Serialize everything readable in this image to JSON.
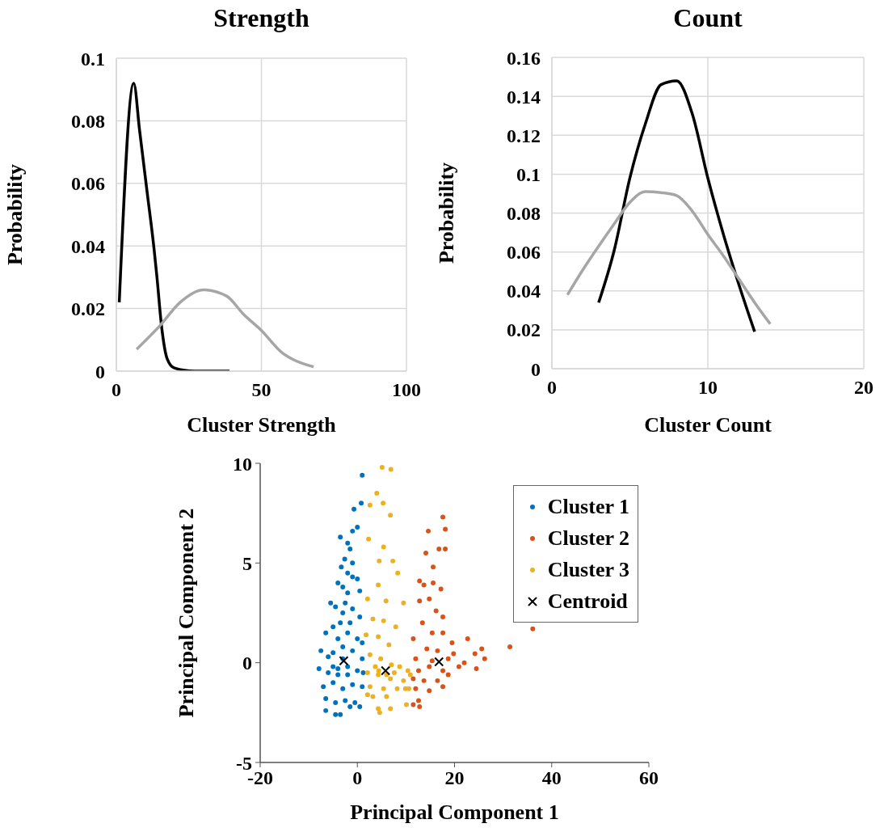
{
  "chart_data": [
    {
      "type": "line",
      "title": "Strength",
      "xlabel": "Cluster Strength",
      "ylabel": "Probability",
      "xlim": [
        0,
        100
      ],
      "xticks": [
        0,
        50,
        100
      ],
      "ylim": [
        0,
        0.1
      ],
      "yticks": [
        0,
        0.02,
        0.04,
        0.06,
        0.08,
        0.1
      ],
      "grid": true,
      "marker": "none",
      "line_style": "solid",
      "series": [
        {
          "color": "#000000",
          "x": [
            1,
            6,
            8,
            10.5,
            13,
            14,
            15.5,
            17.5,
            20,
            27,
            39
          ],
          "values": [
            0.022,
            0.092,
            0.077,
            0.058,
            0.039,
            0.03,
            0.015,
            0.004,
            0.001,
            0,
            0
          ]
        },
        {
          "color": "#a6a6a6",
          "x": [
            7,
            15,
            22,
            30,
            38,
            44,
            50,
            57,
            61,
            68
          ],
          "values": [
            0.007,
            0.0145,
            0.022,
            0.026,
            0.024,
            0.018,
            0.013,
            0.006,
            0.0037,
            0.0014
          ]
        }
      ]
    },
    {
      "type": "line",
      "title": "Count",
      "xlabel": "Cluster Count",
      "ylabel": "Probability",
      "xlim": [
        0,
        20
      ],
      "xticks": [
        0,
        10,
        20
      ],
      "ylim": [
        0,
        0.16
      ],
      "yticks": [
        0,
        0.02,
        0.04,
        0.06,
        0.08,
        0.1,
        0.12,
        0.14,
        0.16
      ],
      "grid": true,
      "marker": "none",
      "line_style": "solid",
      "series": [
        {
          "color": "#000000",
          "x": [
            3,
            4,
            5,
            6,
            7,
            8,
            9,
            10,
            11,
            12,
            13
          ],
          "values": [
            0.034,
            0.061,
            0.098,
            0.126,
            0.146,
            0.148,
            0.131,
            0.098,
            0.069,
            0.043,
            0.019
          ]
        },
        {
          "color": "#a6a6a6",
          "x": [
            1,
            2,
            3,
            4,
            5,
            6,
            7,
            8,
            9,
            10,
            11,
            12,
            13,
            14
          ],
          "values": [
            0.038,
            0.051,
            0.063,
            0.0745,
            0.0855,
            0.091,
            0.0905,
            0.089,
            0.081,
            0.069,
            0.058,
            0.046,
            0.034,
            0.023
          ]
        }
      ]
    },
    {
      "type": "scatter",
      "xlabel": "Principal Component 1",
      "ylabel": "Principal Component 2",
      "xlim": [
        -20,
        60
      ],
      "xticks": [
        -20,
        0,
        20,
        40,
        60
      ],
      "ylim": [
        -5,
        10
      ],
      "yticks": [
        -5,
        0,
        5,
        10
      ],
      "grid": false,
      "legend": "top right",
      "marker": "circle",
      "series": [
        {
          "name": "Cluster 1",
          "color": "#0072bd",
          "x": [
            1,
            0.8,
            -0.7,
            0,
            -1,
            -3.5,
            -2,
            -1.5,
            -2.6,
            -1,
            -3.3,
            -2,
            -1,
            0,
            -4,
            -3,
            -2,
            0.5,
            -5.5,
            -4.5,
            -3,
            -1,
            0.5,
            -6.5,
            -5,
            -4,
            -2,
            0,
            1,
            -7.5,
            -6,
            -5,
            -3,
            -1,
            1,
            -7.9,
            -6,
            -4,
            -2,
            0,
            1.2,
            -7,
            -5,
            -3,
            -1,
            1,
            -6.5,
            -4.5,
            -2.5,
            -0.5,
            -6.5,
            -4.5,
            -3.5,
            -1.5,
            0.5,
            -4,
            -3,
            -2,
            -5,
            -3.5,
            -2.5,
            -1.5
          ],
          "values": [
            9.4,
            8,
            7.7,
            6.8,
            6.6,
            6.3,
            6,
            5.7,
            5.2,
            5,
            4.8,
            4.5,
            4.3,
            4.2,
            4,
            3.8,
            3.5,
            3.6,
            3,
            2.8,
            2.5,
            2.7,
            2.3,
            1.5,
            1.8,
            1.2,
            1.5,
            1.2,
            1,
            0.6,
            0.3,
            0.5,
            0.2,
            0.6,
            0.2,
            -0.3,
            -0.5,
            -0.3,
            -0.6,
            -0.4,
            -0.5,
            -1.2,
            -1,
            -1.3,
            -1.1,
            -1.2,
            -1.8,
            -2,
            -1.9,
            -2,
            -2.4,
            -2.6,
            -2.6,
            -2.2,
            -2.2,
            -0.6,
            0.8,
            -0.2,
            -0.2,
            2,
            3,
            2
          ]
        },
        {
          "name": "Cluster 2",
          "color": "#d95319",
          "x": [
            17.6,
            18.1,
            14.6,
            16.8,
            18.1,
            14.1,
            15.6,
            12.8,
            15.6,
            13.7,
            17.2,
            14.8,
            12.8,
            16.2,
            17.6,
            13.4,
            15.4,
            17.6,
            22.7,
            19.5,
            11.5,
            14.3,
            16.5,
            19.8,
            24.2,
            25.6,
            26.2,
            12,
            15.4,
            18.7,
            22,
            12.6,
            14.8,
            17.6,
            20.9,
            11.5,
            13.7,
            16.5,
            18.7,
            12,
            14.8,
            12.6,
            12.8,
            11.5,
            17.6,
            24.5,
            31.4,
            36.1
          ],
          "values": [
            7.3,
            6.7,
            6.6,
            5.7,
            5.7,
            5.5,
            4.8,
            4.1,
            4,
            3.9,
            3.7,
            3.2,
            3.1,
            2.6,
            2.3,
            2,
            1.5,
            1.5,
            1.2,
            1,
            1.2,
            0.7,
            0.6,
            0.45,
            0.45,
            0.7,
            0.2,
            0.2,
            0.1,
            0.2,
            0,
            -0.4,
            -0.2,
            -0.4,
            -0.2,
            -0.8,
            -0.9,
            -0.9,
            -0.6,
            -1.3,
            -1.4,
            -1.9,
            -2.2,
            -2.1,
            -1.2,
            -0.3,
            0.8,
            1.7
          ]
        },
        {
          "name": "Cluster 3",
          "color": "#edb120",
          "x": [
            5.1,
            6.9,
            4,
            5.3,
            2.6,
            6.8,
            2.3,
            5.4,
            4.5,
            7.3,
            8.3,
            4.3,
            2.1,
            5.9,
            9.5,
            3.2,
            5.4,
            7.9,
            1.8,
            4.3,
            6.5,
            2.6,
            4.8,
            8.7,
            10.4,
            2.1,
            4.3,
            6.8,
            9.5,
            2.6,
            5.4,
            8.2,
            3.2,
            6,
            10.1,
            4.3,
            4.6,
            6.8,
            2.1,
            9.9,
            7,
            3.7,
            4.4,
            6,
            7.6,
            10.9,
            10.6
          ],
          "values": [
            9.8,
            9.7,
            8.5,
            8,
            7.9,
            7.4,
            6.2,
            5.8,
            5.1,
            5.1,
            4.5,
            3.9,
            3.2,
            3.1,
            3,
            2.2,
            2.1,
            1.8,
            1.4,
            1.3,
            0.9,
            0.4,
            0.2,
            -0.2,
            -0.4,
            -0.5,
            -0.6,
            -0.8,
            -0.9,
            -1.2,
            -1.3,
            -1.3,
            -1.7,
            -1.7,
            -2.1,
            -2.3,
            -2.5,
            -2.3,
            -1.6,
            -1.3,
            -0.1,
            -0.2,
            -0.4,
            -0.6,
            -0.5,
            -0.6,
            -1.3
          ]
        },
        {
          "name": "Centroid",
          "color": "#000000",
          "marker": "cross",
          "x": [
            -2.8,
            16.8,
            5.8
          ],
          "values": [
            0.1,
            0.05,
            -0.4
          ]
        }
      ]
    }
  ]
}
